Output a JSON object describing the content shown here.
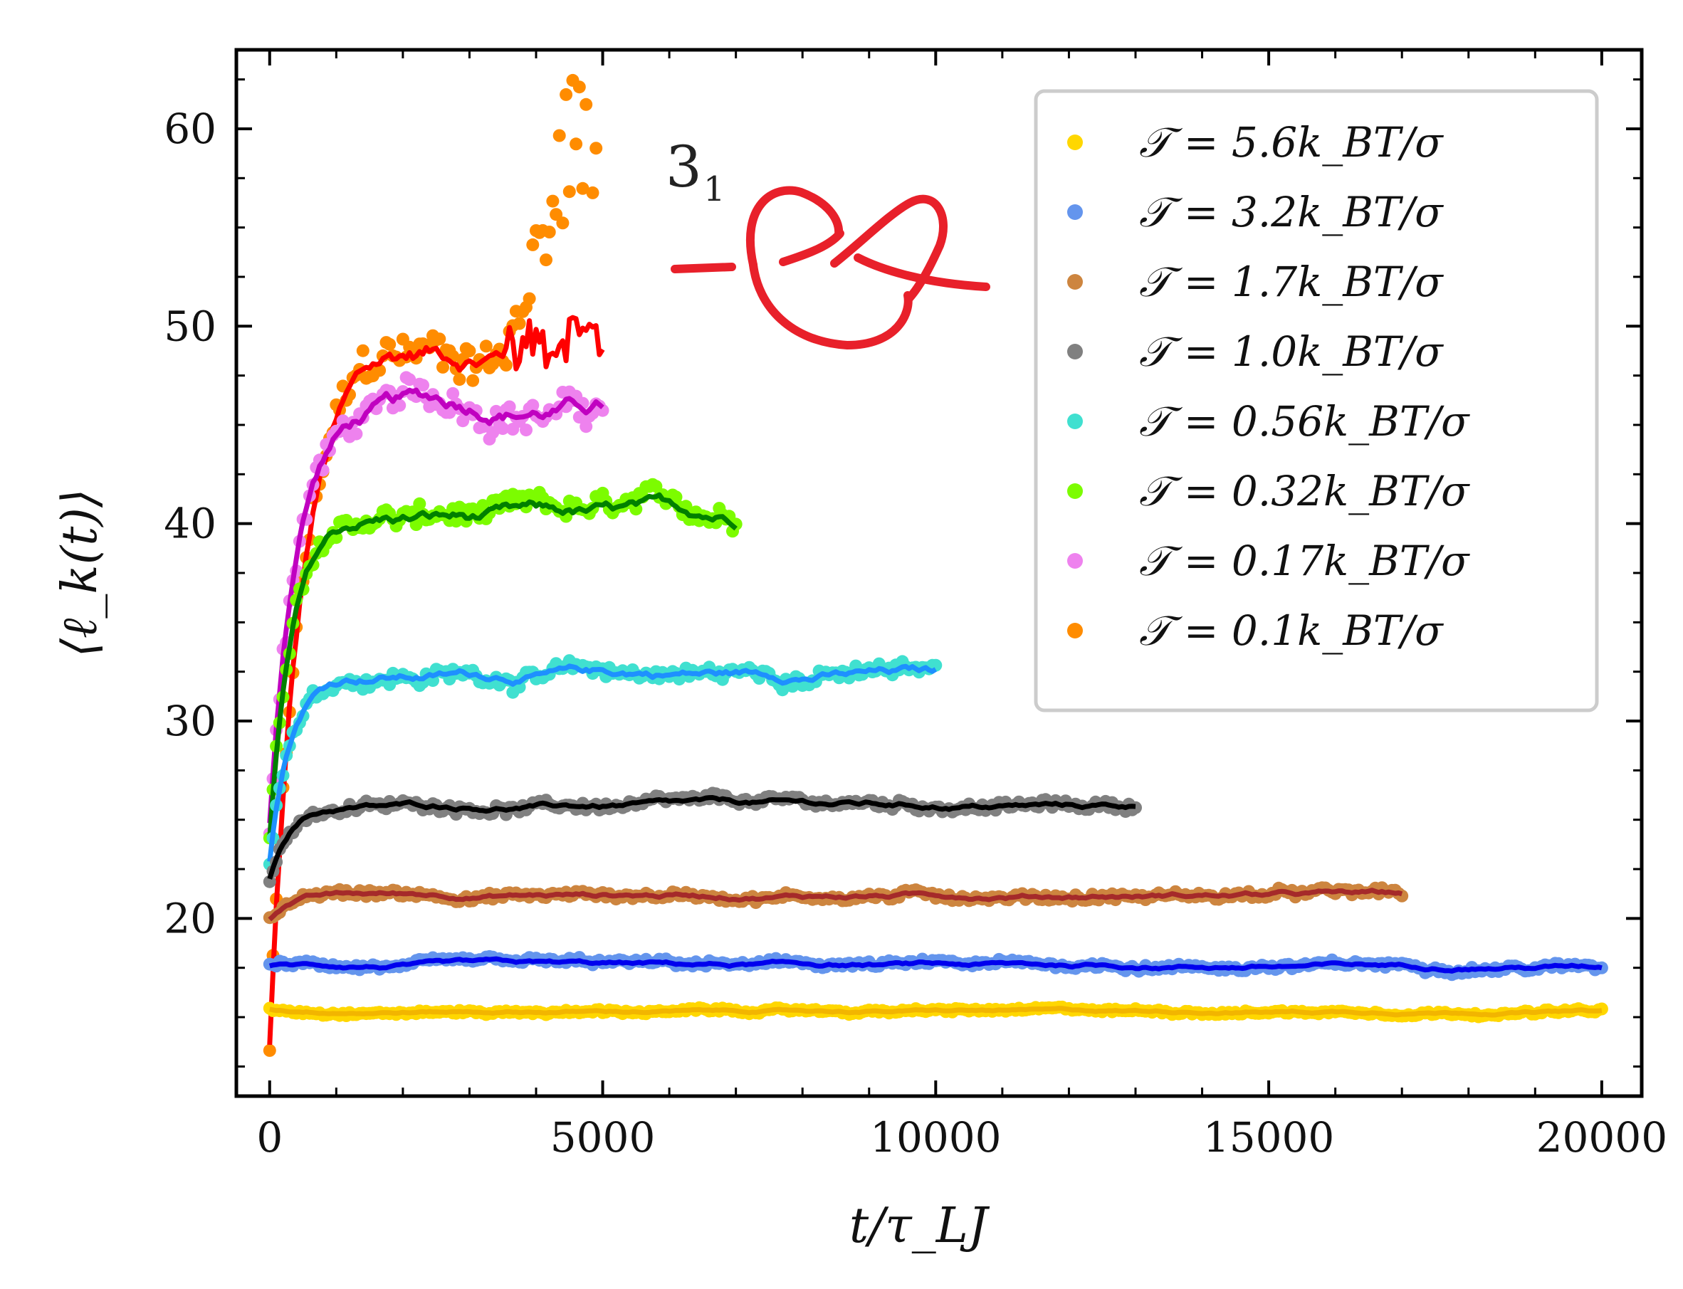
{
  "chart_data": {
    "type": "scatter",
    "title": "",
    "xlabel": "t/τ_LJ",
    "ylabel": "⟨ℓ_k(t)⟩",
    "xlim": [
      -500,
      20600
    ],
    "ylim": [
      11,
      64
    ],
    "xticks": [
      0,
      5000,
      10000,
      15000,
      20000
    ],
    "xtick_labels": [
      "0",
      "5000",
      "10000",
      "15000",
      "20000"
    ],
    "yticks": [
      20,
      30,
      40,
      50,
      60
    ],
    "ytick_labels": [
      "20",
      "30",
      "40",
      "50",
      "60"
    ],
    "legend_position": "top-right",
    "annotation": {
      "knot_label": "3",
      "knot_subscript": "1",
      "knot_color": "#e8202a"
    },
    "series": [
      {
        "name": "5.6",
        "legend_label": "𝒯 = 5.6k_BT/σ",
        "color": "#ffd700",
        "line_color": "#f2b500",
        "t_end": 20000,
        "start": 15.4,
        "plateau": 15.3,
        "noise": 0.15
      },
      {
        "name": "3.2",
        "legend_label": "𝒯 = 3.2k_BT/σ",
        "color": "#6495ed",
        "line_color": "#0000ee",
        "t_end": 20000,
        "start": 17.6,
        "plateau": 17.6,
        "noise": 0.25
      },
      {
        "name": "1.7",
        "legend_label": "𝒯 = 1.7k_BT/σ",
        "color": "#cd853f",
        "line_color": "#a52a2a",
        "t_end": 17000,
        "start": 20.0,
        "plateau": 21.2,
        "noise": 0.3
      },
      {
        "name": "1.0",
        "legend_label": "𝒯 = 1.0k_BT/σ",
        "color": "#808080",
        "line_color": "#000000",
        "t_end": 13000,
        "start": 22.0,
        "plateau": 25.7,
        "noise": 0.35
      },
      {
        "name": "0.56",
        "legend_label": "𝒯 = 0.56k_BT/σ",
        "color": "#40e0d0",
        "line_color": "#1e90ff",
        "t_end": 10000,
        "start": 23.0,
        "plateau": 32.4,
        "noise": 0.6
      },
      {
        "name": "0.32",
        "legend_label": "𝒯 = 0.32k_BT/σ",
        "color": "#7cfc00",
        "line_color": "#008000",
        "t_end": 7000,
        "start": 24.0,
        "plateau": 40.2,
        "noise": 0.9
      },
      {
        "name": "0.17",
        "legend_label": "𝒯 = 0.17k_BT/σ",
        "color": "#ee82ee",
        "line_color": "#c000c0",
        "t_end": 5000,
        "start": 25.0,
        "plateau": 46.0,
        "noise": 1.2
      },
      {
        "name": "0.1",
        "legend_label": "𝒯 = 0.1k_BT/σ",
        "color": "#ff8c00",
        "line_color": "#ff0000",
        "t_end": 5000,
        "start": 13.5,
        "plateau": 48.6,
        "noise": 1.6
      }
    ]
  }
}
